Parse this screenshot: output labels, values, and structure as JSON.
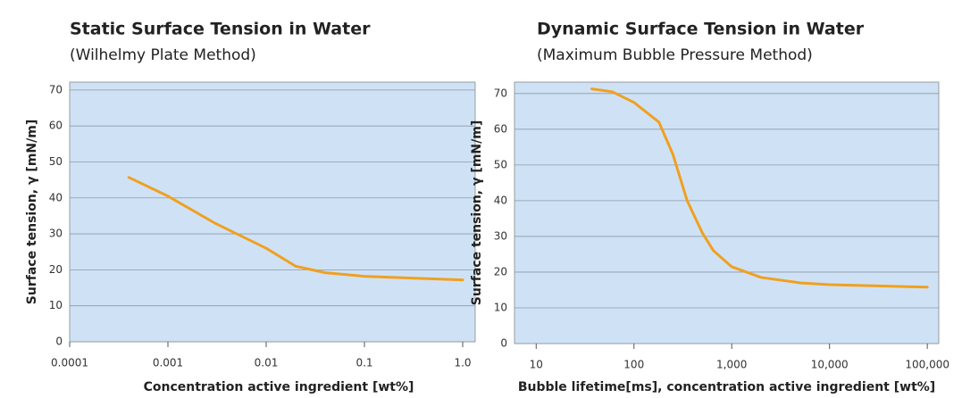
{
  "chart_data": [
    {
      "type": "line",
      "title": "Static Surface Tension in Water",
      "subtitle": "(Wilhelmy Plate Method)",
      "x_label": "Concentration active ingredient [wt%]",
      "y_label": "Surface tension, γ [mN/m]",
      "xscale": "log",
      "xlim": [
        0.0001,
        1.34
      ],
      "ylim": [
        0,
        72.2
      ],
      "xticks": [
        0.0001,
        0.001,
        0.01,
        0.1,
        {
          "value": 1,
          "label": "1.0"
        }
      ],
      "yticks": [
        0,
        10,
        20,
        30,
        40,
        50,
        60,
        70
      ],
      "grid": true,
      "background": "#cfe2f5",
      "series": [
        {
          "color": "#f0a020",
          "x": [
            0.0004,
            0.001,
            0.003,
            0.01,
            0.02,
            0.04,
            0.1,
            0.3,
            1
          ],
          "values": [
            45.7,
            40.5,
            33,
            26,
            21,
            19.2,
            18.2,
            17.7,
            17.2
          ]
        }
      ]
    },
    {
      "type": "line",
      "title": "Dynamic Surface Tension in Water",
      "subtitle": "(Maximum Bubble Pressure Method)",
      "x_label": "Bubble lifetime[ms], concentration active ingredient [wt%]",
      "y_label": "Surface tension, γ [mN/m]",
      "xscale": "log",
      "xlim": [
        6,
        131000
      ],
      "ylim": [
        0,
        73.2
      ],
      "xticks": [
        10,
        100,
        {
          "value": 1000,
          "label": "1,000"
        },
        {
          "value": 10000,
          "label": "10,000"
        },
        {
          "value": 100000,
          "label": "100,000"
        }
      ],
      "yticks": [
        0,
        10,
        20,
        30,
        40,
        50,
        60,
        70
      ],
      "grid": true,
      "background": "#cfe2f5",
      "series": [
        {
          "color": "#f0a020",
          "x": [
            37,
            60,
            100,
            180,
            250,
            350,
            500,
            650,
            1000,
            2000,
            5000,
            10000,
            100000
          ],
          "values": [
            71.3,
            70.5,
            67.5,
            62,
            53,
            40,
            31,
            26,
            21.5,
            18.5,
            17,
            16.5,
            15.8
          ]
        }
      ]
    }
  ]
}
